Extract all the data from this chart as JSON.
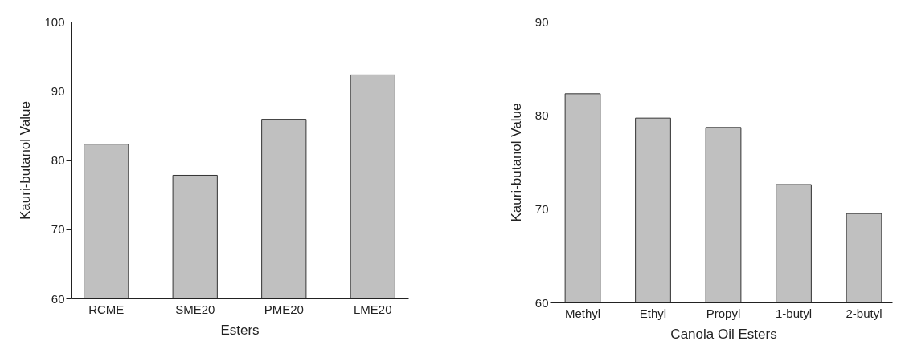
{
  "chart_data": [
    {
      "type": "bar",
      "xlabel": "Esters",
      "ylabel": "Kauri-butanol Value",
      "categories": [
        "RCME",
        "SME20",
        "PME20",
        "LME20"
      ],
      "values": [
        82.3,
        77.8,
        85.9,
        92.3
      ],
      "color": "#c0c0c0",
      "ylim": [
        60,
        100
      ],
      "yticks": [
        60,
        70,
        80,
        90,
        100
      ]
    },
    {
      "type": "bar",
      "xlabel": "Canola Oil Esters",
      "ylabel": "Kauri-butanol Value",
      "categories": [
        "Methyl",
        "Ethyl",
        "Propyl",
        "1-butyl",
        "2-butyl"
      ],
      "values": [
        82.3,
        79.7,
        78.7,
        72.6,
        69.5
      ],
      "color": "#c0c0c0",
      "ylim": [
        60,
        90
      ],
      "yticks": [
        60,
        70,
        80,
        90
      ]
    }
  ]
}
